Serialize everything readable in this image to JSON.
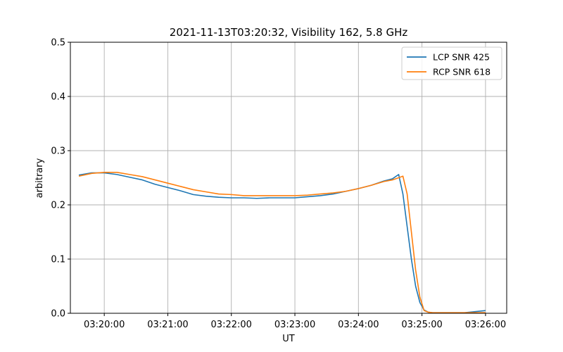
{
  "chart_data": {
    "type": "line",
    "title": "2021-11-13T03:20:32, Visibility 162, 5.8 GHz",
    "xlabel": "UT",
    "ylabel": "arbitrary",
    "xlim": [
      "03:19:28",
      "03:26:20"
    ],
    "ylim": [
      0,
      0.5
    ],
    "xticks": [
      "03:20:00",
      "03:21:00",
      "03:22:00",
      "03:23:00",
      "03:24:00",
      "03:25:00",
      "03:26:00"
    ],
    "yticks": [
      "0.0",
      "0.1",
      "0.2",
      "0.3",
      "0.4",
      "0.5"
    ],
    "grid": true,
    "legend_position": "top-right",
    "series": [
      {
        "name": "LCP SNR 425",
        "color": "#1f77b4",
        "x": [
          "03:19:36",
          "03:19:48",
          "03:20:00",
          "03:20:12",
          "03:20:24",
          "03:20:36",
          "03:20:48",
          "03:21:00",
          "03:21:12",
          "03:21:24",
          "03:21:36",
          "03:21:48",
          "03:22:00",
          "03:22:12",
          "03:22:24",
          "03:22:36",
          "03:22:48",
          "03:23:00",
          "03:23:12",
          "03:23:24",
          "03:23:36",
          "03:23:48",
          "03:24:00",
          "03:24:12",
          "03:24:24",
          "03:24:32",
          "03:24:38",
          "03:24:42",
          "03:24:46",
          "03:24:50",
          "03:24:54",
          "03:24:58",
          "03:25:02",
          "03:25:06",
          "03:25:10",
          "03:25:20",
          "03:25:40",
          "03:26:00"
        ],
        "y": [
          0.255,
          0.259,
          0.259,
          0.256,
          0.251,
          0.246,
          0.238,
          0.232,
          0.226,
          0.219,
          0.216,
          0.214,
          0.213,
          0.213,
          0.212,
          0.213,
          0.213,
          0.213,
          0.215,
          0.217,
          0.22,
          0.225,
          0.23,
          0.236,
          0.244,
          0.248,
          0.256,
          0.22,
          0.16,
          0.1,
          0.05,
          0.02,
          0.006,
          0.002,
          0.001,
          0.001,
          0.001,
          0.005
        ]
      },
      {
        "name": "RCP SNR 618",
        "color": "#ff7f0e",
        "x": [
          "03:19:36",
          "03:19:48",
          "03:20:00",
          "03:20:12",
          "03:20:24",
          "03:20:36",
          "03:20:48",
          "03:21:00",
          "03:21:12",
          "03:21:24",
          "03:21:36",
          "03:21:48",
          "03:22:00",
          "03:22:12",
          "03:22:24",
          "03:22:36",
          "03:22:48",
          "03:23:00",
          "03:23:12",
          "03:23:24",
          "03:23:36",
          "03:23:48",
          "03:24:00",
          "03:24:12",
          "03:24:24",
          "03:24:32",
          "03:24:38",
          "03:24:42",
          "03:24:46",
          "03:24:50",
          "03:24:54",
          "03:24:58",
          "03:25:02",
          "03:25:06",
          "03:25:10",
          "03:25:20",
          "03:25:40",
          "03:26:00"
        ],
        "y": [
          0.253,
          0.258,
          0.26,
          0.26,
          0.256,
          0.252,
          0.246,
          0.24,
          0.234,
          0.228,
          0.224,
          0.22,
          0.219,
          0.217,
          0.217,
          0.217,
          0.217,
          0.217,
          0.218,
          0.22,
          0.222,
          0.225,
          0.23,
          0.236,
          0.243,
          0.246,
          0.25,
          0.253,
          0.22,
          0.15,
          0.08,
          0.03,
          0.005,
          0.002,
          0.001,
          0.001,
          0.001,
          0.001
        ]
      }
    ]
  }
}
